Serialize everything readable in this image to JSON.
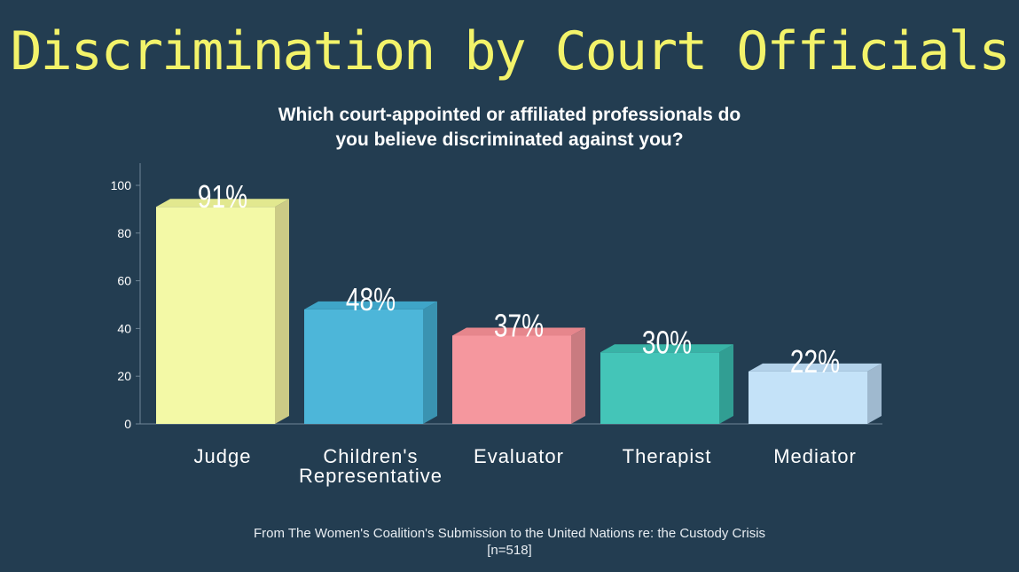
{
  "chart_data": {
    "type": "bar",
    "title": "Discrimination by Court Officials",
    "subtitle": [
      "Which court-appointed or affiliated professionals do",
      "you believe discriminated against you?"
    ],
    "categories": [
      [
        "Judge"
      ],
      [
        "Children's",
        "Representative"
      ],
      [
        "Evaluator"
      ],
      [
        "Therapist"
      ],
      [
        "Mediator"
      ]
    ],
    "values": [
      91,
      48,
      37,
      30,
      22
    ],
    "data_labels": [
      "91%",
      "48%",
      "37%",
      "30%",
      "22%"
    ],
    "colors": [
      "#f3f9a6",
      "#4db6d9",
      "#f5979e",
      "#44c5b8",
      "#c4e2f8"
    ],
    "side_colors": [
      "#cccb86",
      "#3a93b1",
      "#c97b80",
      "#319e93",
      "#9fb9cf"
    ],
    "top_colors": [
      "#e2e88f",
      "#3fa5c8",
      "#e6868c",
      "#38b3a6",
      "#b3d2ea"
    ],
    "yticks": [
      0,
      20,
      40,
      60,
      80,
      100
    ],
    "ylim": [
      0,
      110
    ],
    "xlabel": "",
    "ylabel": ""
  },
  "footer": {
    "line1": "From The Women's Coalition's Submission to the United Nations re: the Custody Crisis",
    "line2": "[n=518]"
  }
}
